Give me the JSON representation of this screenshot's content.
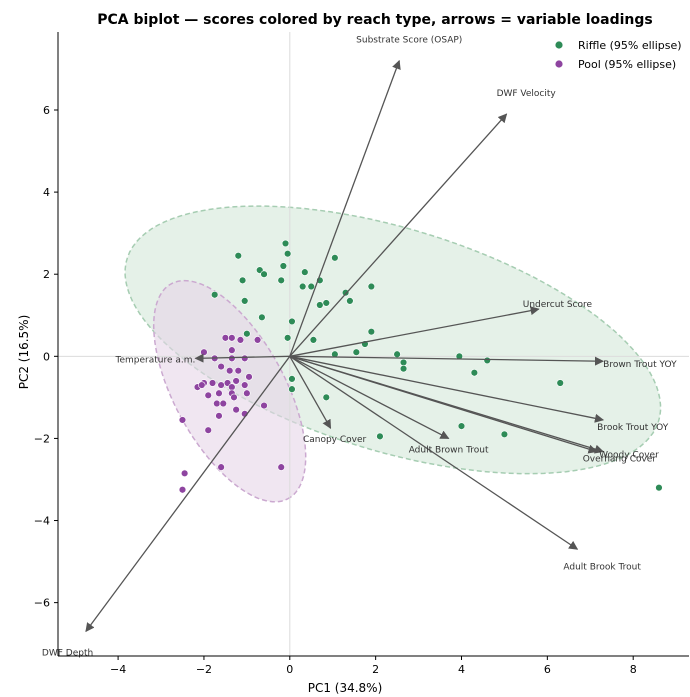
{
  "chart_data": {
    "type": "scatter",
    "title": "PCA biplot — scores colored by reach type, arrows = variable loadings",
    "xlabel": "PC1 (34.8%)",
    "ylabel": "PC2 (16.5%)",
    "xlim": [
      -5.4,
      9.3
    ],
    "ylim": [
      -7.3,
      7.9
    ],
    "xticks": [
      -4,
      -2,
      0,
      2,
      4,
      6,
      8
    ],
    "yticks": [
      -6,
      -4,
      -2,
      0,
      2,
      4,
      6
    ],
    "grid": false,
    "zero_lines": true,
    "legend_position": "top-right",
    "series": [
      {
        "name": "Riffle (95% ellipse)",
        "color": "#2e8b57",
        "ellipse": {
          "cx": 2.4,
          "cy": 0.4,
          "rx": 6.5,
          "ry": 2.7,
          "angle_deg": -18,
          "fill": "#d3e8d9",
          "stroke": "#a6cdb2"
        },
        "points": [
          [
            -1.2,
            2.45
          ],
          [
            -1.1,
            1.85
          ],
          [
            -1.75,
            1.5
          ],
          [
            -0.7,
            2.1
          ],
          [
            -0.6,
            2.0
          ],
          [
            -0.1,
            2.75
          ],
          [
            -0.05,
            2.5
          ],
          [
            -0.15,
            2.2
          ],
          [
            -0.2,
            1.85
          ],
          [
            0.35,
            2.05
          ],
          [
            0.3,
            1.7
          ],
          [
            0.5,
            1.7
          ],
          [
            0.7,
            1.85
          ],
          [
            0.7,
            1.25
          ],
          [
            0.85,
            1.3
          ],
          [
            1.05,
            2.4
          ],
          [
            1.3,
            1.55
          ],
          [
            1.4,
            1.35
          ],
          [
            1.9,
            1.7
          ],
          [
            -1.05,
            1.35
          ],
          [
            -1.0,
            0.55
          ],
          [
            -0.65,
            0.95
          ],
          [
            0.05,
            0.85
          ],
          [
            -0.05,
            0.45
          ],
          [
            1.9,
            0.6
          ],
          [
            0.55,
            0.4
          ],
          [
            1.75,
            0.3
          ],
          [
            1.05,
            0.05
          ],
          [
            1.55,
            0.1
          ],
          [
            2.5,
            0.05
          ],
          [
            2.65,
            -0.15
          ],
          [
            2.65,
            -0.3
          ],
          [
            3.95,
            0.0
          ],
          [
            4.6,
            -0.1
          ],
          [
            4.3,
            -0.4
          ],
          [
            6.3,
            -0.65
          ],
          [
            0.05,
            -0.55
          ],
          [
            0.05,
            -0.8
          ],
          [
            0.85,
            -1.0
          ],
          [
            4.0,
            -1.7
          ],
          [
            5.0,
            -1.9
          ],
          [
            2.1,
            -1.95
          ],
          [
            8.6,
            -3.2
          ]
        ]
      },
      {
        "name": "Pool (95% ellipse)",
        "color": "#8e44a0",
        "ellipse": {
          "cx": -1.4,
          "cy": -0.85,
          "rx": 2.95,
          "ry": 1.3,
          "angle_deg": -63,
          "fill": "#e6d5e8",
          "stroke": "#cba9d0"
        },
        "points": [
          [
            -1.5,
            0.45
          ],
          [
            -1.35,
            0.45
          ],
          [
            -1.15,
            0.4
          ],
          [
            -0.75,
            0.4
          ],
          [
            -1.35,
            0.15
          ],
          [
            -2.0,
            0.1
          ],
          [
            -1.75,
            -0.05
          ],
          [
            -1.35,
            -0.05
          ],
          [
            -1.05,
            -0.05
          ],
          [
            -1.6,
            -0.25
          ],
          [
            -1.4,
            -0.35
          ],
          [
            -1.2,
            -0.35
          ],
          [
            -0.95,
            -0.5
          ],
          [
            -2.0,
            -0.65
          ],
          [
            -1.8,
            -0.65
          ],
          [
            -1.6,
            -0.7
          ],
          [
            -2.15,
            -0.75
          ],
          [
            -2.05,
            -0.7
          ],
          [
            -1.45,
            -0.65
          ],
          [
            -1.35,
            -0.75
          ],
          [
            -1.25,
            -0.6
          ],
          [
            -1.05,
            -0.7
          ],
          [
            -1.9,
            -0.95
          ],
          [
            -1.65,
            -0.9
          ],
          [
            -1.35,
            -0.9
          ],
          [
            -1.3,
            -1.0
          ],
          [
            -1.0,
            -0.9
          ],
          [
            -1.7,
            -1.15
          ],
          [
            -1.55,
            -1.15
          ],
          [
            -1.25,
            -1.3
          ],
          [
            -1.05,
            -1.4
          ],
          [
            -0.6,
            -1.2
          ],
          [
            -1.65,
            -1.45
          ],
          [
            -2.5,
            -1.55
          ],
          [
            -1.9,
            -1.8
          ],
          [
            -2.45,
            -2.85
          ],
          [
            -1.6,
            -2.7
          ],
          [
            -0.2,
            -2.7
          ],
          [
            -2.5,
            -3.25
          ]
        ]
      }
    ],
    "loadings": [
      {
        "name": "Substrate Score (OSAP)",
        "x": 2.55,
        "y": 7.2
      },
      {
        "name": "DWF Velocity",
        "x": 5.05,
        "y": 5.9
      },
      {
        "name": "Undercut Score",
        "x": 5.8,
        "y": 1.15
      },
      {
        "name": "Brown Trout YOY",
        "x": 7.3,
        "y": -0.12
      },
      {
        "name": "Brook Trout YOY",
        "x": 7.3,
        "y": -1.55
      },
      {
        "name": "Overhang Cover",
        "x": 7.15,
        "y": -2.32
      },
      {
        "name": "Woody Cover",
        "x": 7.3,
        "y": -2.32
      },
      {
        "name": "Adult Brook Trout",
        "x": 6.7,
        "y": -4.7
      },
      {
        "name": "Adult Brown Trout",
        "x": 3.7,
        "y": -2.0
      },
      {
        "name": "Canopy Cover",
        "x": 0.95,
        "y": -1.75
      },
      {
        "name": "Temperature a.m.",
        "x": -2.2,
        "y": -0.05
      },
      {
        "name": "DWF Depth",
        "x": -4.75,
        "y": -6.7
      }
    ]
  }
}
